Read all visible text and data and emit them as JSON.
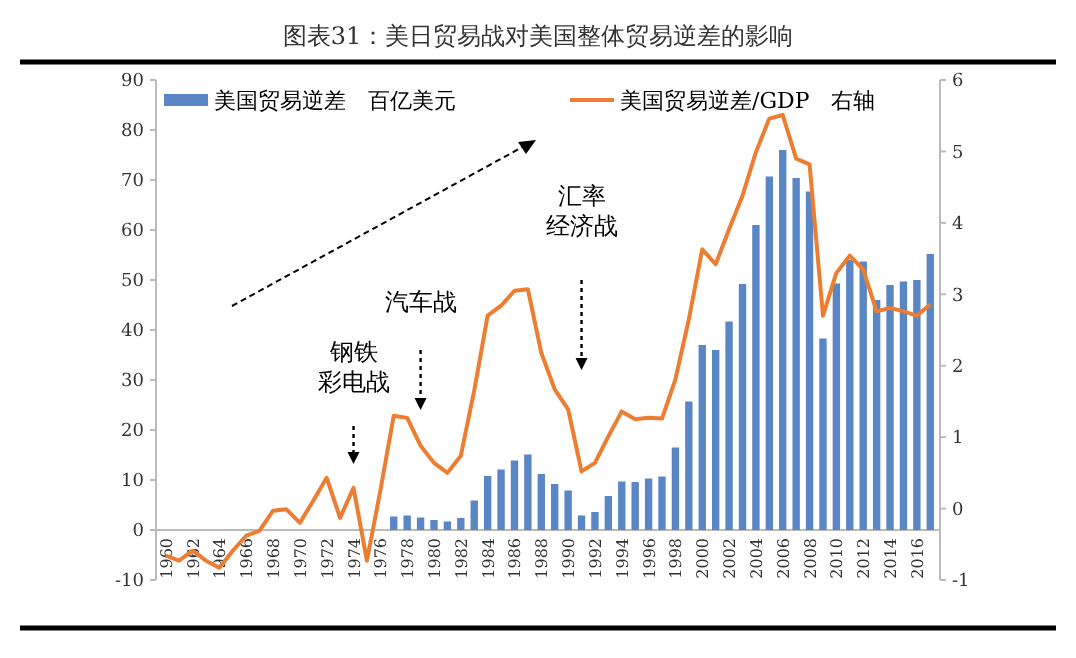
{
  "chart_data": {
    "type": "bar",
    "title": "图表31：美日贸易战对美国整体贸易逆差的影响",
    "categories": [
      "1960",
      null,
      "1962",
      null,
      "1964",
      null,
      "1966",
      null,
      "1968",
      null,
      "1970",
      null,
      "1972",
      null,
      "1974",
      null,
      "1976",
      null,
      "1978",
      null,
      "1980",
      null,
      "1982",
      null,
      "1984",
      null,
      "1986",
      null,
      "1988",
      null,
      "1990",
      null,
      "1992",
      null,
      "1994",
      null,
      "1996",
      null,
      "1998",
      null,
      "2000",
      null,
      "2002",
      null,
      "2004",
      null,
      "2006",
      null,
      "2008",
      null,
      "2010",
      null,
      "2012",
      null,
      "2014",
      null,
      "2016",
      null
    ],
    "series": [
      {
        "name": "美国贸易逆差　百亿美元",
        "color": "#5b86c5",
        "values": [
          null,
          null,
          null,
          null,
          null,
          null,
          null,
          null,
          null,
          null,
          null,
          null,
          null,
          null,
          null,
          null,
          null,
          2.7,
          2.9,
          2.5,
          2,
          1.7,
          2.4,
          5.9,
          10.8,
          12.1,
          13.9,
          15.1,
          11.2,
          9.2,
          7.9,
          2.9,
          3.6,
          6.8,
          9.7,
          9.6,
          10.3,
          10.7,
          16.5,
          25.7,
          37,
          36,
          41.7,
          49.2,
          61,
          70.7,
          76,
          70.4,
          67.7,
          38.3,
          49.3,
          54,
          53.7,
          46,
          49,
          49.7,
          50,
          55.2
        ]
      },
      {
        "name": "美国贸易逆差/GDP　右轴",
        "type": "line",
        "axis": "y2",
        "color": "#ed7d31",
        "values": [
          -0.66,
          -0.73,
          -0.59,
          -0.73,
          -0.83,
          -0.59,
          -0.38,
          -0.31,
          -0.03,
          -0.01,
          -0.2,
          0.11,
          0.43,
          -0.13,
          0.29,
          -0.73,
          0.25,
          1.3,
          1.27,
          0.88,
          0.64,
          0.5,
          0.74,
          1.65,
          2.7,
          2.84,
          3.05,
          3.07,
          2.18,
          1.67,
          1.39,
          0.52,
          0.64,
          1.01,
          1.36,
          1.25,
          1.27,
          1.26,
          1.81,
          2.65,
          3.63,
          3.42,
          3.91,
          4.38,
          4.99,
          5.46,
          5.51,
          4.9,
          4.82,
          2.7,
          3.3,
          3.54,
          3.35,
          2.76,
          2.81,
          2.76,
          2.7,
          2.86
        ]
      }
    ],
    "ylim": [
      -10,
      90
    ],
    "yticks": [
      -10,
      0,
      10,
      20,
      30,
      40,
      50,
      60,
      70,
      80,
      90
    ],
    "y2lim": [
      -1,
      6
    ],
    "y2ticks": [
      -1,
      0,
      1,
      2,
      3,
      4,
      5,
      6
    ],
    "annotations": [
      "钢铁",
      "彩电战",
      "汽车战",
      "汇率",
      "经济战"
    ],
    "legend": "top",
    "grid": false,
    "marker": "none",
    "line_style": "solid"
  }
}
